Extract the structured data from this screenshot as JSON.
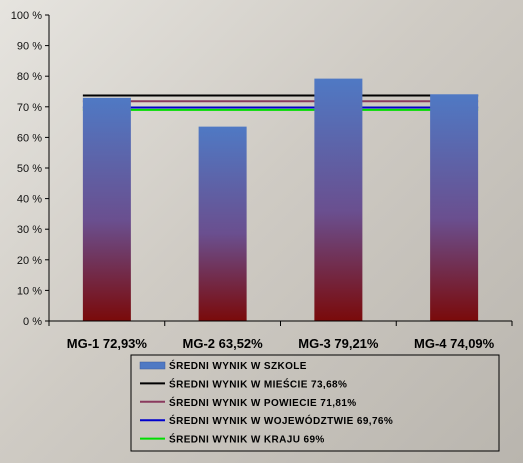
{
  "chart_data": {
    "type": "bar",
    "categories": [
      "MG-1 72,93%",
      "MG-2 63,52%",
      "MG-3 79,21%",
      "MG-4 74,09%"
    ],
    "ylim": [
      0,
      100
    ],
    "ytick_values": [
      0,
      10,
      20,
      30,
      40,
      50,
      60,
      70,
      80,
      90,
      100
    ],
    "ytick_labels": [
      "0 %",
      "10 %",
      "20 %",
      "30 %",
      "40 %",
      "50 %",
      "60 %",
      "70 %",
      "80 %",
      "90 %",
      "100 %"
    ],
    "series": [
      {
        "name": "ŚREDNI WYNIK W SZKOLE",
        "type": "bar",
        "values": [
          72.93,
          63.52,
          79.21,
          74.09
        ],
        "color_top": "#4f79c4",
        "color_bottom": "#7a0a0a"
      }
    ],
    "reference_lines": [
      {
        "name": "ŚREDNI WYNIK W MIEŚCIE 73,68%",
        "value": 73.68,
        "color": "#000000"
      },
      {
        "name": "ŚREDNI WYNIK W POWIECIE 71,81%",
        "value": 71.81,
        "color": "#8a3a5e"
      },
      {
        "name": "ŚREDNI WYNIK W WOJEWÓDZTWIE 69,76%",
        "value": 69.76,
        "color": "#0000cc"
      },
      {
        "name": "ŚREDNI WYNIK W KRAJU 69%",
        "value": 69,
        "color": "#00dd00"
      }
    ],
    "legend_position": "bottom"
  }
}
